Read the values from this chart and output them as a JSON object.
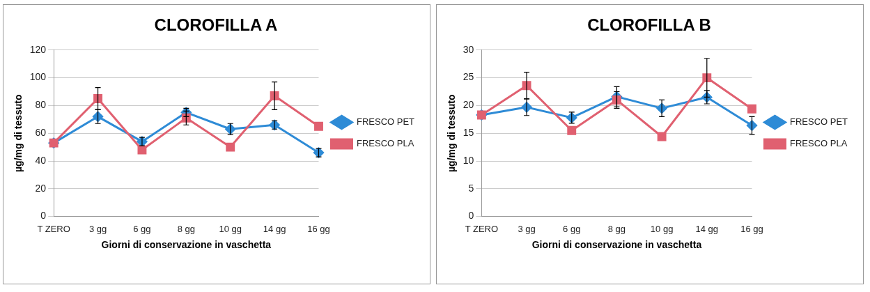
{
  "chart_data": [
    {
      "type": "line",
      "title": "CLOROFILLA A",
      "xlabel": "Giorni di conservazione in vaschetta",
      "ylabel": "µg/mg di tessuto",
      "categories": [
        "T ZERO",
        "3 gg",
        "6 gg",
        "8 gg",
        "10 gg",
        "14 gg",
        "16 gg"
      ],
      "ylim": [
        0,
        120
      ],
      "yticks": [
        0,
        20,
        40,
        60,
        80,
        100,
        120
      ],
      "grid": "y",
      "legend": "right",
      "series": [
        {
          "name": "FRESCO PET",
          "color": "#2e8bd6",
          "marker": "diamond",
          "values": [
            53,
            72,
            54,
            75,
            63,
            66,
            46
          ],
          "errors": [
            null,
            5,
            3,
            3,
            4,
            3,
            3
          ]
        },
        {
          "name": "FRESCO PLA",
          "color": "#e06070",
          "marker": "square",
          "values": [
            53,
            85,
            48,
            71,
            50,
            87,
            65
          ],
          "errors": [
            null,
            8,
            null,
            5,
            null,
            10,
            null
          ]
        }
      ]
    },
    {
      "type": "line",
      "title": "CLOROFILLA B",
      "xlabel": "Giorni di conservazione in vaschetta",
      "ylabel": "µg/mg di tessuto",
      "categories": [
        "T ZERO",
        "3 gg",
        "6 gg",
        "8 gg",
        "10 gg",
        "14 gg",
        "16 gg"
      ],
      "ylim": [
        0,
        30
      ],
      "yticks": [
        0,
        5,
        10,
        15,
        20,
        25,
        30
      ],
      "grid": "y",
      "legend": "right",
      "series": [
        {
          "name": "FRESCO PET",
          "color": "#2e8bd6",
          "marker": "diamond",
          "values": [
            18.3,
            19.7,
            17.8,
            21.6,
            19.5,
            21.5,
            16.4
          ],
          "errors": [
            null,
            1.5,
            1,
            1.8,
            1.5,
            1.2,
            1.6
          ]
        },
        {
          "name": "FRESCO PLA",
          "color": "#e06070",
          "marker": "square",
          "values": [
            18.3,
            23.6,
            15.5,
            21,
            14.4,
            25,
            19.4
          ],
          "errors": [
            null,
            2.4,
            null,
            1.5,
            null,
            3.5,
            null
          ]
        }
      ]
    }
  ]
}
